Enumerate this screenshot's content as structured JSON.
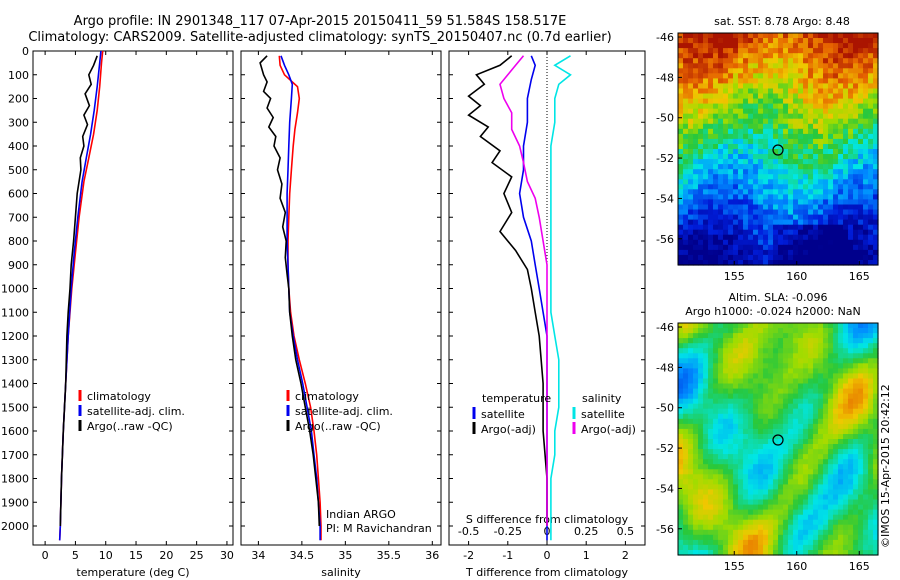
{
  "title": {
    "line1": "Argo profile: IN 2901348_117 07-Apr-2015 20150411_59 51.584S 158.517E",
    "line2": "Climatology: CARS2009. Satellite-adjusted climatology: synTS_20150407.nc (0.7d earlier)"
  },
  "colors": {
    "climatology": "#ff0000",
    "satellite": "#0000ee",
    "argo": "#000000",
    "sal_satellite": "#00e5e5",
    "sal_argo": "#ee00ee"
  },
  "chart_data": [
    {
      "type": "line",
      "id": "temperature",
      "xlabel": "temperature (deg C)",
      "ylabel": "",
      "xlim": [
        -2,
        31
      ],
      "ylim": [
        2080,
        0
      ],
      "xticks": [
        0,
        5,
        10,
        15,
        20,
        25,
        30
      ],
      "yticks": [
        0,
        100,
        200,
        300,
        400,
        500,
        600,
        700,
        800,
        900,
        1000,
        1100,
        1200,
        1300,
        1400,
        1500,
        1600,
        1700,
        1800,
        1900,
        2000
      ],
      "legend": {
        "position": "center",
        "entries": [
          "climatology",
          "satellite-adj. clim.",
          "Argo(..raw -QC)"
        ]
      },
      "series": [
        {
          "name": "climatology",
          "color": "red",
          "points": [
            [
              9.5,
              0
            ],
            [
              9.3,
              50
            ],
            [
              9.0,
              150
            ],
            [
              8.6,
              250
            ],
            [
              8.0,
              350
            ],
            [
              7.2,
              450
            ],
            [
              6.4,
              550
            ],
            [
              5.6,
              700
            ],
            [
              5.0,
              850
            ],
            [
              4.4,
              1000
            ],
            [
              3.8,
              1200
            ],
            [
              3.4,
              1400
            ],
            [
              3.0,
              1600
            ],
            [
              2.7,
              1800
            ],
            [
              2.5,
              2000
            ],
            [
              2.4,
              2060
            ]
          ]
        },
        {
          "name": "satellite-adj. clim.",
          "color": "blue",
          "points": [
            [
              9.2,
              0
            ],
            [
              9.0,
              50
            ],
            [
              8.6,
              150
            ],
            [
              8.1,
              250
            ],
            [
              7.5,
              350
            ],
            [
              6.8,
              450
            ],
            [
              6.1,
              550
            ],
            [
              5.4,
              700
            ],
            [
              4.8,
              850
            ],
            [
              4.3,
              1000
            ],
            [
              3.8,
              1200
            ],
            [
              3.4,
              1400
            ],
            [
              3.0,
              1600
            ],
            [
              2.7,
              1800
            ],
            [
              2.5,
              2000
            ],
            [
              2.4,
              2060
            ]
          ]
        },
        {
          "name": "Argo(..raw -QC)",
          "color": "black",
          "points": [
            [
              8.6,
              20
            ],
            [
              8.0,
              60
            ],
            [
              7.2,
              100
            ],
            [
              7.6,
              140
            ],
            [
              6.6,
              180
            ],
            [
              7.3,
              230
            ],
            [
              6.4,
              270
            ],
            [
              7.0,
              310
            ],
            [
              6.2,
              360
            ],
            [
              6.4,
              400
            ],
            [
              5.8,
              450
            ],
            [
              5.9,
              500
            ],
            [
              5.3,
              600
            ],
            [
              5.0,
              700
            ],
            [
              4.7,
              800
            ],
            [
              4.3,
              900
            ],
            [
              4.1,
              1000
            ],
            [
              3.8,
              1100
            ],
            [
              3.6,
              1200
            ],
            [
              3.4,
              1400
            ],
            [
              3.0,
              1600
            ],
            [
              2.7,
              1800
            ],
            [
              2.5,
              2000
            ]
          ]
        }
      ]
    },
    {
      "type": "line",
      "id": "salinity",
      "xlabel": "salinity",
      "xlim": [
        33.8,
        36.1
      ],
      "ylim": [
        2080,
        0
      ],
      "xticks": [
        34,
        34.5,
        35,
        35.5,
        36
      ],
      "legend": {
        "position": "center",
        "entries": [
          "climatology",
          "satellite-adj. clim.",
          "Argo(..raw -QC)"
        ]
      },
      "annotation": [
        "Indian ARGO",
        "PI: M Ravichandran"
      ],
      "series": [
        {
          "name": "climatology",
          "color": "red",
          "points": [
            [
              34.24,
              20
            ],
            [
              34.25,
              60
            ],
            [
              34.3,
              100
            ],
            [
              34.45,
              150
            ],
            [
              34.47,
              200
            ],
            [
              34.45,
              260
            ],
            [
              34.42,
              330
            ],
            [
              34.4,
              400
            ],
            [
              34.38,
              500
            ],
            [
              34.36,
              600
            ],
            [
              34.35,
              700
            ],
            [
              34.34,
              800
            ],
            [
              34.34,
              900
            ],
            [
              34.35,
              1000
            ],
            [
              34.37,
              1100
            ],
            [
              34.41,
              1200
            ],
            [
              34.47,
              1300
            ],
            [
              34.54,
              1400
            ],
            [
              34.6,
              1500
            ],
            [
              34.64,
              1600
            ],
            [
              34.67,
              1700
            ],
            [
              34.69,
              1800
            ],
            [
              34.71,
              1900
            ],
            [
              34.72,
              2000
            ],
            [
              34.72,
              2060
            ]
          ]
        },
        {
          "name": "satellite-adj. clim.",
          "color": "blue",
          "points": [
            [
              34.26,
              20
            ],
            [
              34.3,
              60
            ],
            [
              34.35,
              100
            ],
            [
              34.39,
              140
            ],
            [
              34.38,
              200
            ],
            [
              34.36,
              300
            ],
            [
              34.35,
              400
            ],
            [
              34.34,
              500
            ],
            [
              34.33,
              600
            ],
            [
              34.33,
              700
            ],
            [
              34.33,
              800
            ],
            [
              34.34,
              900
            ],
            [
              34.35,
              1000
            ],
            [
              34.36,
              1100
            ],
            [
              34.4,
              1200
            ],
            [
              34.45,
              1300
            ],
            [
              34.51,
              1400
            ],
            [
              34.56,
              1500
            ],
            [
              34.61,
              1600
            ],
            [
              34.64,
              1700
            ],
            [
              34.67,
              1800
            ],
            [
              34.69,
              1900
            ],
            [
              34.71,
              2000
            ],
            [
              34.71,
              2060
            ]
          ]
        },
        {
          "name": "Argo(..raw -QC)",
          "color": "black",
          "points": [
            [
              34.1,
              20
            ],
            [
              34.02,
              50
            ],
            [
              34.06,
              100
            ],
            [
              34.1,
              130
            ],
            [
              34.06,
              170
            ],
            [
              34.14,
              200
            ],
            [
              34.1,
              240
            ],
            [
              34.17,
              280
            ],
            [
              34.12,
              320
            ],
            [
              34.2,
              360
            ],
            [
              34.18,
              400
            ],
            [
              34.25,
              450
            ],
            [
              34.22,
              500
            ],
            [
              34.27,
              560
            ],
            [
              34.25,
              620
            ],
            [
              34.31,
              680
            ],
            [
              34.28,
              740
            ],
            [
              34.32,
              800
            ],
            [
              34.31,
              870
            ],
            [
              34.33,
              940
            ],
            [
              34.35,
              1000
            ],
            [
              34.36,
              1100
            ],
            [
              34.39,
              1200
            ],
            [
              34.43,
              1300
            ],
            [
              34.49,
              1400
            ],
            [
              34.54,
              1500
            ],
            [
              34.59,
              1600
            ],
            [
              34.63,
              1700
            ],
            [
              34.66,
              1800
            ],
            [
              34.69,
              1900
            ],
            [
              34.7,
              2000
            ]
          ]
        }
      ]
    },
    {
      "type": "line",
      "id": "difference",
      "xlabel": "T difference from climatology",
      "xlabel2": "S difference from climatology",
      "xlim": [
        -2.5,
        2.5
      ],
      "ylim": [
        2080,
        0
      ],
      "xticks": [
        -2,
        -1,
        0,
        1,
        2
      ],
      "xticks2": [
        {
          "label": "-0.5",
          "t": -2
        },
        {
          "label": "-0.25",
          "t": -1
        },
        {
          "label": "0",
          "t": 0
        },
        {
          "label": "0.25",
          "t": 1
        },
        {
          "label": "0.5",
          "t": 2
        }
      ],
      "legend": {
        "position": "center",
        "temperature_title": "temperature",
        "salinity_title": "salinity",
        "entries": [
          "satellite",
          "Argo(-adj)",
          "satellite",
          "Argo(-adj)"
        ]
      },
      "series": [
        {
          "name": "temperature satellite",
          "color": "blue",
          "points": [
            [
              -0.4,
              20
            ],
            [
              -0.3,
              60
            ],
            [
              -0.4,
              120
            ],
            [
              -0.5,
              200
            ],
            [
              -0.5,
              300
            ],
            [
              -0.6,
              400
            ],
            [
              -0.6,
              500
            ],
            [
              -0.7,
              600
            ],
            [
              -0.6,
              700
            ],
            [
              -0.4,
              800
            ],
            [
              -0.3,
              900
            ],
            [
              -0.2,
              1000
            ],
            [
              -0.1,
              1100
            ],
            [
              0,
              1200
            ],
            [
              0,
              1300
            ],
            [
              0,
              1500
            ],
            [
              0,
              1700
            ],
            [
              0,
              1900
            ],
            [
              0,
              2060
            ]
          ]
        },
        {
          "name": "temperature Argo(-adj)",
          "color": "black",
          "points": [
            [
              -0.9,
              20
            ],
            [
              -1.2,
              60
            ],
            [
              -1.8,
              100
            ],
            [
              -1.6,
              140
            ],
            [
              -2.0,
              190
            ],
            [
              -1.7,
              230
            ],
            [
              -2.0,
              270
            ],
            [
              -1.5,
              320
            ],
            [
              -1.7,
              360
            ],
            [
              -1.2,
              420
            ],
            [
              -1.4,
              470
            ],
            [
              -0.9,
              530
            ],
            [
              -1.1,
              600
            ],
            [
              -0.9,
              680
            ],
            [
              -1.2,
              760
            ],
            [
              -0.8,
              840
            ],
            [
              -0.5,
              920
            ],
            [
              -0.4,
              1000
            ],
            [
              -0.3,
              1100
            ],
            [
              -0.2,
              1200
            ],
            [
              -0.1,
              1400
            ],
            [
              -0.1,
              1600
            ],
            [
              0,
              1800
            ],
            [
              0,
              2000
            ]
          ]
        },
        {
          "name": "salinity satellite",
          "color": "cyan",
          "points": [
            [
              0.6,
              20
            ],
            [
              0.2,
              60
            ],
            [
              0.6,
              100
            ],
            [
              0.3,
              140
            ],
            [
              0.2,
              200
            ],
            [
              0.2,
              300
            ],
            [
              0.1,
              400
            ],
            [
              0.1,
              500
            ],
            [
              0.1,
              600
            ],
            [
              0.1,
              700
            ],
            [
              0.1,
              800
            ],
            [
              0.1,
              900
            ],
            [
              0.1,
              1000
            ],
            [
              0.1,
              1100
            ],
            [
              0.2,
              1200
            ],
            [
              0.3,
              1300
            ],
            [
              0.3,
              1400
            ],
            [
              0.3,
              1500
            ],
            [
              0.2,
              1600
            ],
            [
              0.2,
              1700
            ],
            [
              0.1,
              1800
            ],
            [
              0.1,
              1900
            ],
            [
              0.1,
              2060
            ]
          ]
        },
        {
          "name": "salinity Argo(-adj)",
          "color": "magenta",
          "points": [
            [
              -0.6,
              20
            ],
            [
              -0.8,
              60
            ],
            [
              -1.0,
              100
            ],
            [
              -1.2,
              140
            ],
            [
              -1.1,
              200
            ],
            [
              -0.9,
              260
            ],
            [
              -0.9,
              330
            ],
            [
              -0.7,
              400
            ],
            [
              -0.6,
              470
            ],
            [
              -0.5,
              550
            ],
            [
              -0.3,
              620
            ],
            [
              -0.2,
              700
            ],
            [
              -0.1,
              800
            ],
            [
              0,
              900
            ],
            [
              0,
              1000
            ],
            [
              0,
              1100
            ],
            [
              0,
              1200
            ],
            [
              0,
              1400
            ],
            [
              0,
              1600
            ],
            [
              0,
              1800
            ],
            [
              0,
              2000
            ]
          ]
        }
      ]
    },
    {
      "type": "heatmap",
      "id": "sst_map",
      "title": "sat. SST: 8.78 Argo: 8.48",
      "xlim": [
        150.5,
        166.5
      ],
      "ylim": [
        -57.3,
        -45.8
      ],
      "xticks": [
        155,
        160,
        165
      ],
      "yticks": [
        -46,
        -48,
        -50,
        -52,
        -54,
        -56
      ],
      "marker": {
        "lon": 158.5,
        "lat": -51.6
      }
    },
    {
      "type": "heatmap",
      "id": "sla_map",
      "title_line1": "Altim. SLA: -0.096",
      "title_line2": "Argo h1000: -0.024 h2000: NaN",
      "xlim": [
        150.5,
        166.5
      ],
      "ylim": [
        -57.3,
        -45.8
      ],
      "xticks": [
        155,
        160,
        165
      ],
      "yticks": [
        -46,
        -48,
        -50,
        -52,
        -54,
        -56
      ],
      "marker": {
        "lon": 158.5,
        "lat": -51.6
      }
    }
  ],
  "watermark": "©IMOS 15-Apr-2015 20:42:12"
}
